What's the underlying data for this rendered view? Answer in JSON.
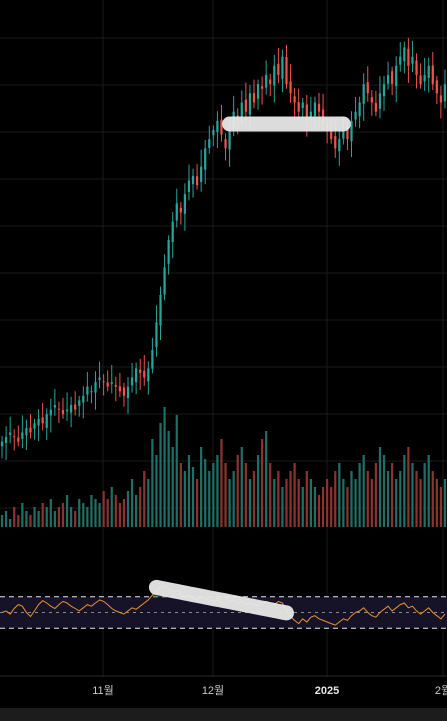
{
  "chart_data": [
    {
      "type": "candlestick",
      "title": "",
      "x_ticks": [
        "11월",
        "12월",
        "2025",
        "2월"
      ],
      "grid": true,
      "colors": {
        "up": "#26a69a",
        "down": "#ef5350",
        "background": "#000000",
        "grid": "#1a1a1a"
      },
      "close_series": [
        8,
        9,
        10,
        9,
        8,
        10,
        11,
        10,
        12,
        13,
        12,
        14,
        15,
        16,
        15,
        14,
        15,
        16,
        15,
        17,
        18,
        20,
        19,
        21,
        22,
        21,
        20,
        21,
        20,
        19,
        18,
        20,
        22,
        24,
        23,
        22,
        24,
        28,
        34,
        40,
        46,
        52,
        56,
        60,
        58,
        62,
        65,
        66,
        64,
        68,
        72,
        74,
        76,
        78,
        75,
        72,
        76,
        80,
        78,
        82,
        80,
        84,
        82,
        86,
        85,
        88,
        86,
        90,
        88,
        92,
        86,
        84,
        82,
        80,
        82,
        78,
        80,
        82,
        80,
        78,
        76,
        74,
        72,
        74,
        76,
        74,
        78,
        80,
        82,
        86,
        84,
        82,
        80,
        84,
        86,
        88,
        86,
        90,
        92,
        94,
        90,
        92,
        88,
        86,
        88,
        90,
        86,
        84,
        82,
        86
      ],
      "annotations": [
        {
          "kind": "highlight-stroke",
          "panel": "price",
          "color": "#e8e8e8",
          "from_index": 56,
          "to_index": 84
        }
      ]
    },
    {
      "type": "bar",
      "title": "",
      "panel": "volume",
      "values": [
        3,
        4,
        2,
        5,
        3,
        6,
        4,
        3,
        5,
        4,
        6,
        5,
        7,
        4,
        5,
        6,
        8,
        5,
        4,
        7,
        6,
        5,
        8,
        7,
        6,
        9,
        7,
        10,
        8,
        6,
        7,
        9,
        12,
        8,
        10,
        14,
        12,
        22,
        18,
        26,
        30,
        24,
        20,
        28,
        16,
        14,
        18,
        15,
        12,
        20,
        17,
        14,
        16,
        18,
        22,
        16,
        12,
        14,
        18,
        20,
        16,
        12,
        14,
        18,
        22,
        24,
        16,
        12,
        14,
        10,
        12,
        14,
        16,
        12,
        10,
        14,
        12,
        10,
        8,
        10,
        12,
        10,
        14,
        16,
        12,
        10,
        14,
        12,
        16,
        18,
        14,
        12,
        16,
        20,
        18,
        14,
        16,
        12,
        14,
        18,
        20,
        16,
        14,
        12,
        16,
        18,
        14,
        12,
        10,
        12
      ]
    },
    {
      "type": "line",
      "title": "",
      "panel": "oscillator",
      "ylim": [
        0,
        100
      ],
      "reference_lines": [
        70,
        50,
        30
      ],
      "color": "#e8912c",
      "values": [
        50,
        52,
        48,
        55,
        60,
        58,
        50,
        45,
        52,
        60,
        65,
        62,
        58,
        55,
        60,
        64,
        62,
        58,
        55,
        52,
        56,
        60,
        58,
        62,
        66,
        64,
        60,
        55,
        52,
        50,
        48,
        52,
        56,
        54,
        58,
        62,
        66,
        72,
        78,
        82,
        84,
        80,
        76,
        78,
        74,
        70,
        72,
        68,
        66,
        70,
        68,
        66,
        64,
        66,
        62,
        60,
        64,
        66,
        62,
        64,
        60,
        62,
        60,
        58,
        62,
        64,
        62,
        60,
        64,
        62,
        52,
        45,
        40,
        36,
        42,
        38,
        44,
        46,
        42,
        40,
        38,
        36,
        34,
        38,
        42,
        40,
        46,
        50,
        52,
        56,
        50,
        46,
        44,
        50,
        54,
        58,
        52,
        56,
        60,
        62,
        56,
        58,
        52,
        48,
        52,
        56,
        50,
        46,
        42,
        48
      ],
      "annotations": [
        {
          "kind": "highlight-stroke",
          "color": "#e8e8e8",
          "from_index": 38,
          "to_index": 70
        }
      ]
    }
  ]
}
